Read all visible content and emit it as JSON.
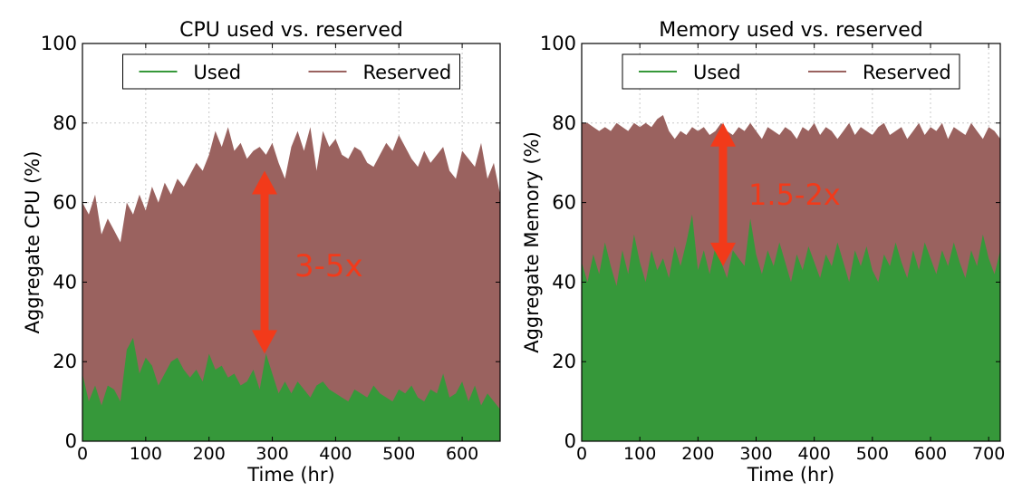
{
  "chart_data": [
    {
      "type": "area",
      "title": "CPU used vs. reserved",
      "xlabel": "Time (hr)",
      "ylabel": "Aggregate CPU (%)",
      "xlim": [
        0,
        660
      ],
      "ylim": [
        0,
        100
      ],
      "xticks": [
        0,
        100,
        200,
        300,
        400,
        500,
        600
      ],
      "yticks": [
        0,
        20,
        40,
        60,
        80,
        100
      ],
      "grid": true,
      "legend_position": "top-center",
      "annotation": "3-5x",
      "series": [
        {
          "name": "Reserved",
          "color": "#9a625f",
          "x": [
            0,
            10,
            20,
            30,
            40,
            50,
            60,
            70,
            80,
            90,
            100,
            110,
            120,
            130,
            140,
            150,
            160,
            170,
            180,
            190,
            200,
            210,
            220,
            230,
            240,
            250,
            260,
            270,
            280,
            290,
            300,
            310,
            320,
            330,
            340,
            350,
            360,
            370,
            380,
            390,
            400,
            410,
            420,
            430,
            440,
            450,
            460,
            470,
            480,
            490,
            500,
            510,
            520,
            530,
            540,
            550,
            560,
            570,
            580,
            590,
            600,
            610,
            620,
            630,
            640,
            650,
            660
          ],
          "values": [
            60,
            57,
            62,
            52,
            56,
            53,
            50,
            60,
            57,
            62,
            58,
            64,
            60,
            65,
            62,
            66,
            64,
            67,
            70,
            68,
            72,
            78,
            74,
            79,
            73,
            75,
            71,
            73,
            74,
            72,
            75,
            70,
            66,
            74,
            78,
            73,
            79,
            68,
            78,
            74,
            76,
            72,
            71,
            74,
            73,
            70,
            69,
            72,
            75,
            73,
            77,
            74,
            71,
            69,
            73,
            70,
            72,
            74,
            68,
            66,
            73,
            71,
            69,
            75,
            66,
            70,
            62
          ]
        },
        {
          "name": "Used",
          "color": "#36983a",
          "x": [
            0,
            10,
            20,
            30,
            40,
            50,
            60,
            70,
            80,
            90,
            100,
            110,
            120,
            130,
            140,
            150,
            160,
            170,
            180,
            190,
            200,
            210,
            220,
            230,
            240,
            250,
            260,
            270,
            280,
            290,
            300,
            310,
            320,
            330,
            340,
            350,
            360,
            370,
            380,
            390,
            400,
            410,
            420,
            430,
            440,
            450,
            460,
            470,
            480,
            490,
            500,
            510,
            520,
            530,
            540,
            550,
            560,
            570,
            580,
            590,
            600,
            610,
            620,
            630,
            640,
            650,
            660
          ],
          "values": [
            17,
            10,
            14,
            9,
            14,
            13,
            10,
            23,
            26,
            17,
            21,
            19,
            14,
            17,
            20,
            21,
            18,
            16,
            18,
            15,
            22,
            18,
            19,
            16,
            17,
            14,
            15,
            18,
            13,
            22,
            17,
            12,
            15,
            12,
            15,
            13,
            11,
            14,
            15,
            13,
            12,
            11,
            10,
            13,
            12,
            11,
            14,
            12,
            11,
            10,
            13,
            12,
            14,
            11,
            10,
            13,
            12,
            17,
            11,
            12,
            15,
            10,
            14,
            9,
            12,
            10,
            8
          ]
        }
      ]
    },
    {
      "type": "area",
      "title": "Memory used vs. reserved",
      "xlabel": "Time (hr)",
      "ylabel": "Aggregate Memory (%)",
      "xlim": [
        0,
        720
      ],
      "ylim": [
        0,
        100
      ],
      "xticks": [
        0,
        100,
        200,
        300,
        400,
        500,
        600,
        700
      ],
      "yticks": [
        0,
        20,
        40,
        60,
        80,
        100
      ],
      "grid": true,
      "legend_position": "top-center",
      "annotation": "1.5-2x",
      "series": [
        {
          "name": "Reserved",
          "color": "#9a625f",
          "x": [
            0,
            10,
            20,
            30,
            40,
            50,
            60,
            70,
            80,
            90,
            100,
            110,
            120,
            130,
            140,
            150,
            160,
            170,
            180,
            190,
            200,
            210,
            220,
            230,
            240,
            250,
            260,
            270,
            280,
            290,
            300,
            310,
            320,
            330,
            340,
            350,
            360,
            370,
            380,
            390,
            400,
            410,
            420,
            430,
            440,
            450,
            460,
            470,
            480,
            490,
            500,
            510,
            520,
            530,
            540,
            550,
            560,
            570,
            580,
            590,
            600,
            610,
            620,
            630,
            640,
            650,
            660,
            670,
            680,
            690,
            700,
            710,
            720
          ],
          "values": [
            80,
            80,
            79,
            78,
            79,
            78,
            80,
            79,
            78,
            80,
            79,
            80,
            79,
            81,
            82,
            78,
            76,
            78,
            77,
            79,
            78,
            79,
            77,
            78,
            80,
            78,
            77,
            79,
            78,
            80,
            78,
            76,
            79,
            78,
            77,
            79,
            78,
            76,
            79,
            78,
            80,
            77,
            79,
            78,
            76,
            78,
            80,
            77,
            79,
            78,
            77,
            79,
            80,
            77,
            78,
            79,
            76,
            78,
            80,
            77,
            79,
            78,
            80,
            76,
            79,
            78,
            77,
            80,
            78,
            76,
            79,
            78,
            76
          ]
        },
        {
          "name": "Used",
          "color": "#36983a",
          "x": [
            0,
            10,
            20,
            30,
            40,
            50,
            60,
            70,
            80,
            90,
            100,
            110,
            120,
            130,
            140,
            150,
            160,
            170,
            180,
            190,
            200,
            210,
            220,
            230,
            240,
            250,
            260,
            270,
            280,
            290,
            300,
            310,
            320,
            330,
            340,
            350,
            360,
            370,
            380,
            390,
            400,
            410,
            420,
            430,
            440,
            450,
            460,
            470,
            480,
            490,
            500,
            510,
            520,
            530,
            540,
            550,
            560,
            570,
            580,
            590,
            600,
            610,
            620,
            630,
            640,
            650,
            660,
            670,
            680,
            690,
            700,
            710,
            720
          ],
          "values": [
            45,
            40,
            47,
            42,
            50,
            44,
            39,
            48,
            42,
            52,
            45,
            40,
            48,
            43,
            46,
            41,
            49,
            44,
            50,
            57,
            43,
            48,
            42,
            49,
            45,
            41,
            48,
            46,
            44,
            56,
            47,
            42,
            48,
            44,
            50,
            45,
            40,
            47,
            43,
            49,
            45,
            41,
            47,
            44,
            50,
            45,
            40,
            48,
            44,
            49,
            43,
            40,
            47,
            44,
            50,
            45,
            41,
            48,
            43,
            50,
            46,
            42,
            48,
            44,
            50,
            45,
            41,
            48,
            44,
            52,
            46,
            42,
            48
          ]
        }
      ]
    }
  ]
}
